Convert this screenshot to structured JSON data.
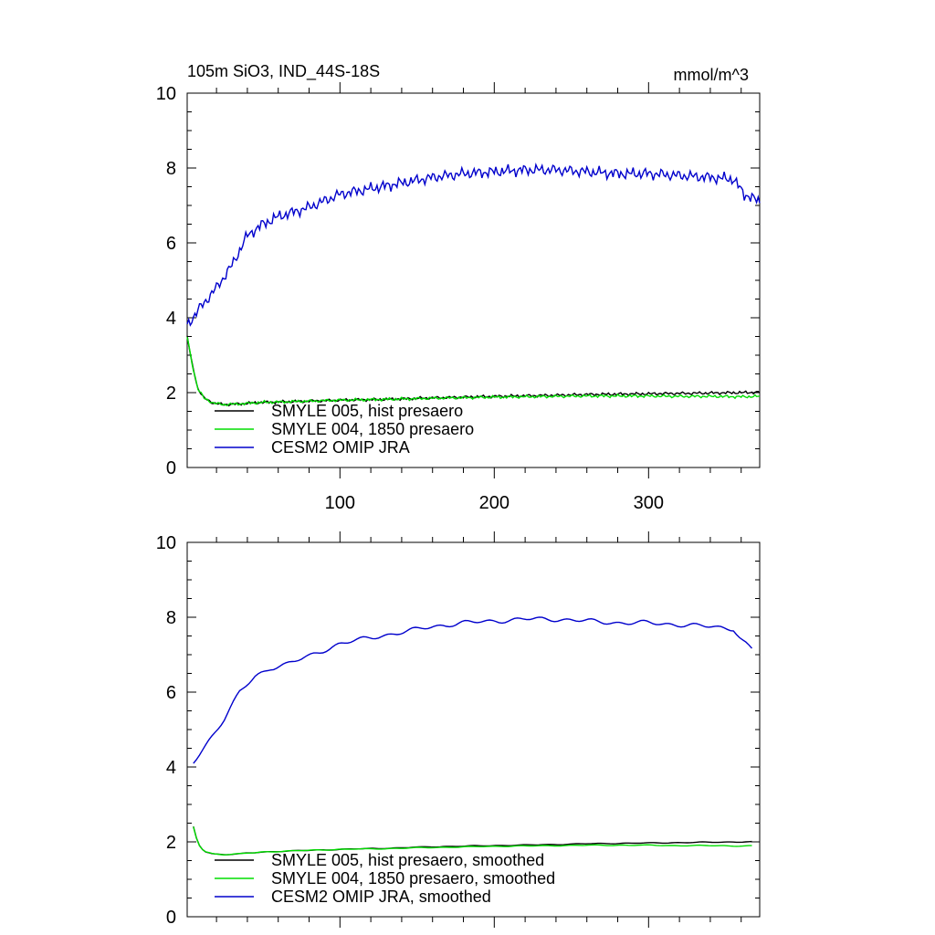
{
  "chart_data": [
    {
      "type": "line",
      "title_left": "105m SiO3, IND_44S-18S",
      "title_right": "mmol/m^3",
      "xlim": [
        1,
        372
      ],
      "ylim": [
        0,
        10
      ],
      "xticks": [
        100,
        200,
        300
      ],
      "xtick_labels": [
        "100",
        "200",
        "300"
      ],
      "yticks": [
        0,
        2,
        4,
        6,
        8,
        10
      ],
      "ytick_labels": [
        "0",
        "2",
        "4",
        "6",
        "8",
        "10"
      ],
      "legend": "bottom-left",
      "series": [
        {
          "name": "SMYLE 005, hist presaero",
          "color": "#000000",
          "x": [
            1,
            4,
            8,
            12,
            18,
            25,
            35,
            50,
            70,
            100,
            130,
            160,
            200,
            240,
            260,
            280,
            300,
            320,
            340,
            360,
            372
          ],
          "y": [
            3.5,
            2.8,
            2.1,
            1.85,
            1.72,
            1.68,
            1.7,
            1.74,
            1.76,
            1.8,
            1.82,
            1.86,
            1.9,
            1.93,
            1.95,
            1.96,
            1.97,
            1.98,
            1.99,
            2.0,
            2.01
          ]
        },
        {
          "name": "SMYLE 004, 1850 presaero",
          "color": "#00dd00",
          "x": [
            1,
            4,
            8,
            12,
            18,
            25,
            35,
            50,
            70,
            100,
            130,
            160,
            200,
            240,
            260,
            280,
            300,
            320,
            340,
            360,
            372
          ],
          "y": [
            3.5,
            2.8,
            2.1,
            1.85,
            1.72,
            1.68,
            1.7,
            1.74,
            1.76,
            1.8,
            1.82,
            1.85,
            1.88,
            1.9,
            1.91,
            1.91,
            1.91,
            1.9,
            1.9,
            1.89,
            1.9
          ]
        },
        {
          "name": "CESM2 OMIP JRA",
          "color": "#0000cc",
          "x": [
            1,
            10,
            20,
            30,
            40,
            50,
            60,
            80,
            100,
            120,
            140,
            160,
            180,
            200,
            220,
            240,
            260,
            280,
            300,
            320,
            340,
            355,
            362,
            372
          ],
          "y": [
            3.8,
            4.3,
            4.8,
            5.4,
            6.2,
            6.5,
            6.7,
            6.95,
            7.3,
            7.45,
            7.6,
            7.75,
            7.85,
            7.9,
            7.95,
            7.95,
            7.9,
            7.85,
            7.85,
            7.8,
            7.75,
            7.7,
            7.3,
            7.1
          ]
        }
      ]
    },
    {
      "type": "line",
      "xlim": [
        1,
        372
      ],
      "ylim": [
        0,
        10
      ],
      "yticks": [
        0,
        2,
        4,
        6,
        8,
        10
      ],
      "ytick_labels": [
        "0",
        "2",
        "4",
        "6",
        "8",
        "10"
      ],
      "legend": "bottom-left",
      "series": [
        {
          "name": "SMYLE 005, hist presaero, smoothed",
          "color": "#000000",
          "x": [
            5,
            8,
            12,
            18,
            25,
            35,
            50,
            70,
            100,
            130,
            160,
            200,
            240,
            260,
            280,
            300,
            320,
            340,
            360,
            367
          ],
          "y": [
            2.4,
            1.95,
            1.75,
            1.68,
            1.66,
            1.68,
            1.73,
            1.76,
            1.8,
            1.83,
            1.87,
            1.9,
            1.93,
            1.95,
            1.96,
            1.97,
            1.98,
            1.99,
            2.0,
            2.0
          ]
        },
        {
          "name": "SMYLE 004, 1850 presaero, smoothed",
          "color": "#00dd00",
          "x": [
            5,
            8,
            12,
            18,
            25,
            35,
            50,
            70,
            100,
            130,
            160,
            200,
            240,
            260,
            280,
            300,
            320,
            340,
            360,
            367
          ],
          "y": [
            2.4,
            1.95,
            1.75,
            1.68,
            1.66,
            1.68,
            1.73,
            1.76,
            1.8,
            1.82,
            1.85,
            1.88,
            1.9,
            1.91,
            1.91,
            1.91,
            1.9,
            1.9,
            1.89,
            1.89
          ]
        },
        {
          "name": "CESM2 OMIP JRA, smoothed",
          "color": "#0000cc",
          "x": [
            5,
            15,
            25,
            35,
            45,
            55,
            65,
            80,
            100,
            120,
            140,
            160,
            180,
            200,
            220,
            240,
            260,
            280,
            300,
            320,
            340,
            355,
            360,
            367
          ],
          "y": [
            4.1,
            4.7,
            5.3,
            6.0,
            6.4,
            6.65,
            6.75,
            6.95,
            7.3,
            7.45,
            7.6,
            7.75,
            7.85,
            7.9,
            7.95,
            7.95,
            7.9,
            7.85,
            7.85,
            7.8,
            7.75,
            7.7,
            7.4,
            7.15
          ]
        }
      ]
    }
  ]
}
